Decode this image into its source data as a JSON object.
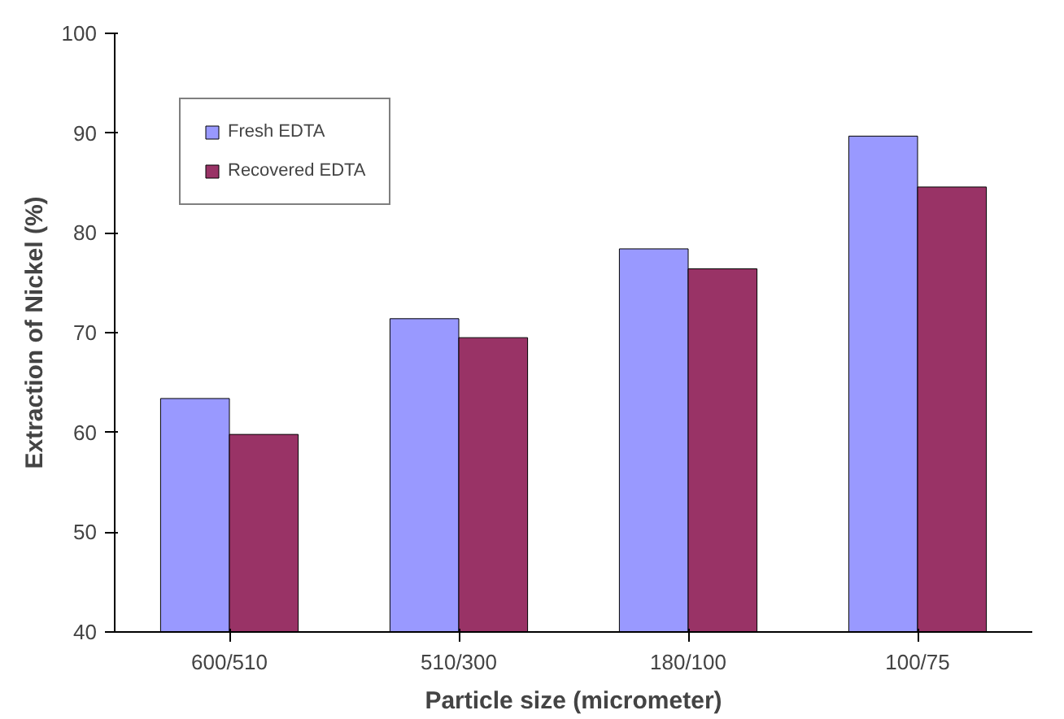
{
  "chart_data": {
    "type": "bar",
    "xlabel": "Particle size (micrometer)",
    "ylabel": "Extraction of Nickel (%)",
    "categories": [
      "600/510",
      "510/300",
      "180/100",
      "100/75"
    ],
    "series": [
      {
        "name": "Fresh EDTA",
        "color": "#9999ff",
        "values": [
          63.4,
          71.4,
          78.4,
          89.7
        ]
      },
      {
        "name": "Recovered EDTA",
        "color": "#993366",
        "values": [
          59.8,
          69.5,
          76.4,
          84.6
        ]
      }
    ],
    "ylim": [
      40,
      100
    ],
    "yticks": [
      40,
      50,
      60,
      70,
      80,
      90,
      100
    ],
    "grid": false,
    "legend": "top left"
  }
}
